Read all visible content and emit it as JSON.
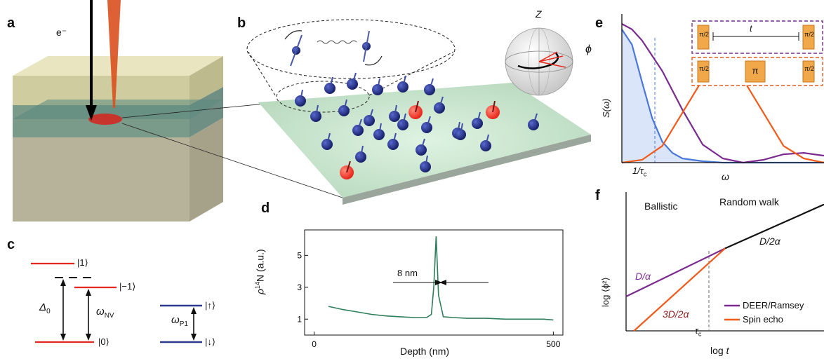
{
  "panels": {
    "a": {
      "letter": "a",
      "beam_label": "e⁻"
    },
    "b": {
      "letter": "b",
      "bloch_z": "Z",
      "bloch_phi": "ϕ"
    },
    "c": {
      "letter": "c",
      "levels": {
        "one": "|1⟩",
        "minus_one": "|−1⟩",
        "zero": "|0⟩",
        "up": "|↑⟩",
        "down": "|↓⟩"
      },
      "delta_sym": "Δ",
      "delta_sub": "0",
      "omega_nv_sym": "ω",
      "omega_nv_sub": "NV",
      "omega_p1_sym": "ω",
      "omega_p1_sub": "P1"
    },
    "d": {
      "letter": "d",
      "width_annotation": "8 nm"
    },
    "e": {
      "letter": "e",
      "pulse_pi2": "π/2",
      "pulse_t": "t",
      "pulse_pi": "π",
      "x_tick_sym": "1/τ",
      "x_tick_sub": "c"
    },
    "f": {
      "letter": "f",
      "region_ballistic": "Ballistic",
      "region_random_walk": "Random walk",
      "slope_d_over_alpha": "D/α",
      "slope_3d": "3D/2α",
      "slope_d_over_2alpha": "D/2α",
      "tau_sym": "τ",
      "tau_sub": "c",
      "xlabel": "log t"
    }
  },
  "colors": {
    "red": "#e8271c",
    "navy": "#2b3a8f",
    "green": "#2e7d5b",
    "blue": "#4a78d8",
    "purple": "#7b2b90",
    "orange": "#f05a1a",
    "pulse_fill": "#f0a84a"
  },
  "chart_data": [
    {
      "panel": "d",
      "type": "line",
      "ylabel_main": "ρ",
      "ylabel_sup": "14",
      "ylabel_rest": "N (a.u.)",
      "xlabel": "Depth (nm)",
      "xticks": [
        0,
        500
      ],
      "yticks": [
        1,
        3,
        5
      ],
      "xlim": [
        -20,
        520
      ],
      "ylim": [
        0,
        6.6
      ],
      "series": [
        {
          "x": [
            30,
            60,
            90,
            120,
            150,
            180,
            210,
            235,
            245,
            250,
            255,
            260,
            270,
            290,
            320,
            360,
            400,
            440,
            480,
            500
          ],
          "values": [
            1.8,
            1.6,
            1.45,
            1.3,
            1.2,
            1.15,
            1.1,
            1.1,
            1.3,
            3.0,
            6.2,
            2.5,
            1.15,
            1.1,
            1.05,
            1.05,
            1.0,
            1.0,
            1.0,
            0.95
          ]
        }
      ]
    },
    {
      "panel": "e",
      "type": "line",
      "ylabel": "S(ω)",
      "xlabel": "ω",
      "series": [
        {
          "color": "blue",
          "x": [
            0,
            0.05,
            0.1,
            0.15,
            0.2,
            0.25,
            0.3,
            0.4,
            0.5,
            0.6,
            0.7,
            0.8,
            0.9,
            1.0
          ],
          "values": [
            0.96,
            0.85,
            0.58,
            0.32,
            0.15,
            0.07,
            0.03,
            0.01,
            0.0,
            0.0,
            0.0,
            0.0,
            0.0,
            0.0
          ]
        },
        {
          "name": "DEER/Ramsey",
          "color": "purple",
          "x": [
            0,
            0.05,
            0.1,
            0.2,
            0.3,
            0.4,
            0.5,
            0.6,
            0.7,
            0.8,
            0.9,
            1.0
          ],
          "values": [
            1.0,
            0.96,
            0.88,
            0.66,
            0.38,
            0.13,
            0.03,
            0.0,
            0.02,
            0.06,
            0.07,
            0.05
          ]
        },
        {
          "name": "Spin echo",
          "color": "orange",
          "x": [
            0,
            0.1,
            0.2,
            0.3,
            0.4,
            0.5,
            0.6,
            0.7,
            0.8,
            0.9,
            1.0
          ],
          "values": [
            0.0,
            0.02,
            0.12,
            0.36,
            0.6,
            0.7,
            0.6,
            0.36,
            0.12,
            0.03,
            0.0
          ]
        }
      ]
    },
    {
      "panel": "f",
      "type": "line",
      "ylabel": "log ⟨ϕ²⟩",
      "xlabel": "log t",
      "series": [
        {
          "name": "DEER/Ramsey",
          "color": "purple",
          "x": [
            0,
            0.5
          ],
          "values": [
            0.25,
            0.6
          ]
        },
        {
          "name": "Spin echo",
          "color": "orange",
          "x": [
            0.04,
            0.5
          ],
          "values": [
            0.0,
            0.6
          ]
        },
        {
          "color": "black",
          "x": [
            0.5,
            1.0
          ],
          "values": [
            0.6,
            0.92
          ]
        }
      ],
      "legend": [
        "DEER/Ramsey",
        "Spin echo"
      ]
    }
  ]
}
